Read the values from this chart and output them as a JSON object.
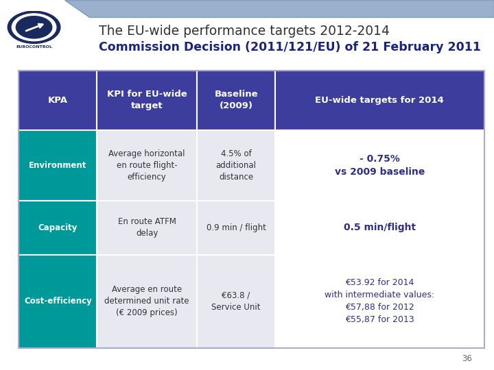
{
  "title_line1": "The EU-wide performance targets 2012-2014",
  "title_line2": "Commission Decision (2011/121/EU) of 21 February 2011",
  "bg_color": "#ffffff",
  "header_bg": "#3d3d9e",
  "teal_col_bg": "#009999",
  "body_mid_bg": "#e8e8f0",
  "white_bg": "#ffffff",
  "header_text_color": "#ffffff",
  "teal_text_color": "#ffffff",
  "body_text_color": "#333333",
  "target_text_color": "#2e2e8f",
  "title1_color": "#333333",
  "title2_color": "#1a237e",
  "top_banner_dark": "#1a2a5e",
  "top_banner_light": "#4a6fa5",
  "col_headers": [
    "KPA",
    "KPI for EU-wide\ntarget",
    "Baseline\n(2009)",
    "EU-wide targets for 2014"
  ],
  "rows": [
    {
      "kpa": "Environment",
      "kpi": "Average horizontal\nen route flight-\nefficiency",
      "baseline": "4.5% of\nadditional\ndistance",
      "target": "- 0.75%\nvs 2009 baseline"
    },
    {
      "kpa": "Capacity",
      "kpi": "En route ATFM\ndelay",
      "baseline": "0.9 min / flight",
      "target": "0.5 min/flight"
    },
    {
      "kpa": "Cost-efficiency",
      "kpi": "Average en route\ndetermined unit rate\n(€ 2009 prices)",
      "baseline": "€63.8 /\nService Unit",
      "target": "€53.92 for 2014\nwith intermediate values:\n€57,88 for 2012\n€55,87 for 2013"
    }
  ],
  "page_number": "36"
}
